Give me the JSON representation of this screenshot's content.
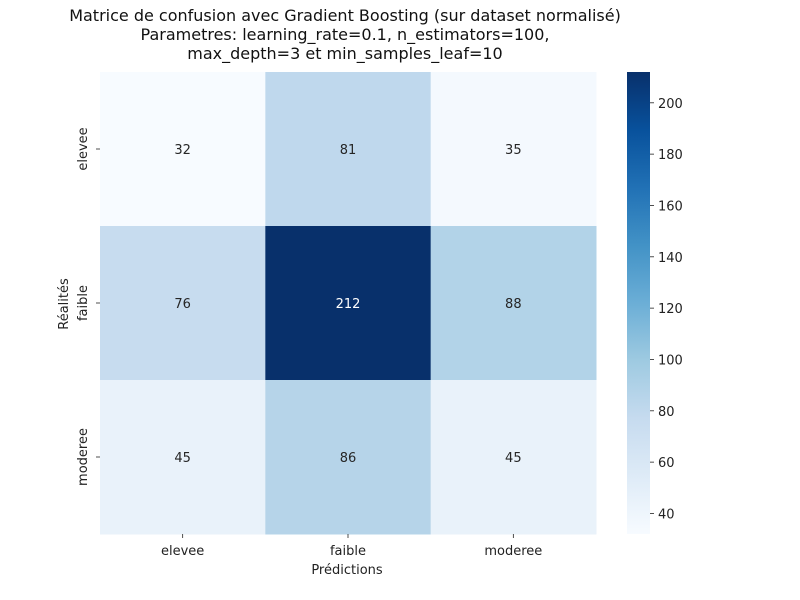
{
  "chart_data": {
    "type": "heatmap",
    "title_lines": [
      "Matrice de confusion avec Gradient Boosting (sur dataset normalisé)",
      "Parametres: learning_rate=0.1, n_estimators=100,",
      "max_depth=3 et min_samples_leaf=10"
    ],
    "xlabel": "Prédictions",
    "ylabel": "Réalités",
    "x_categories": [
      "elevee",
      "faible",
      "moderee"
    ],
    "y_categories": [
      "elevee",
      "faible",
      "moderee"
    ],
    "values": [
      [
        32,
        81,
        35
      ],
      [
        76,
        212,
        88
      ],
      [
        45,
        86,
        45
      ]
    ],
    "colormap": "Blues",
    "colorbar": {
      "vmin": 32,
      "vmax": 212,
      "ticks": [
        40,
        60,
        80,
        100,
        120,
        140,
        160,
        180,
        200
      ]
    }
  }
}
